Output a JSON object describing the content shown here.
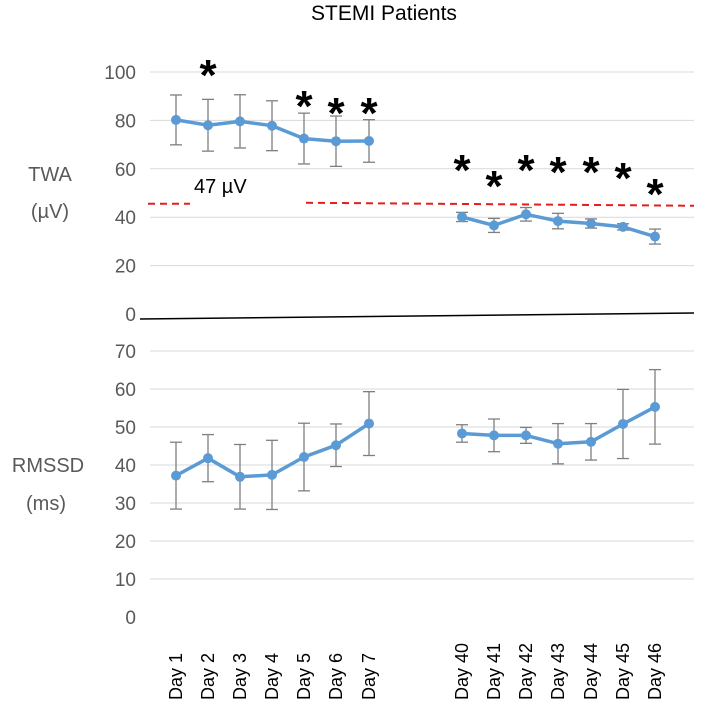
{
  "chart_data": {
    "type": "line",
    "title": "STEMI Patients",
    "categories": [
      "Day 1",
      "Day 2",
      "Day 3",
      "Day 4",
      "Day 5",
      "Day 6",
      "Day 7",
      "Day 40",
      "Day 41",
      "Day 42",
      "Day 43",
      "Day 44",
      "Day 45",
      "Day 46"
    ],
    "line_color": "#5b9bd5",
    "threshold_color": "#e02020",
    "panels": [
      {
        "id": "twa",
        "ylabel": [
          "TWA",
          "(µV)"
        ],
        "ylim": [
          0,
          100
        ],
        "yticks": [
          "0",
          "20",
          "40",
          "60",
          "80",
          "100"
        ],
        "threshold": 47,
        "threshold_label": "47 µV",
        "series": [
          {
            "name": "TWA",
            "values": [
              80.2,
              78.0,
              79.6,
              77.8,
              72.5,
              71.4,
              71.5,
              40.1,
              36.6,
              41.2,
              38.4,
              37.4,
              36.0,
              32.0
            ]
          }
        ],
        "errors": [
          10.3,
          10.7,
          11.0,
          10.3,
          10.5,
          10.4,
          8.8,
          1.9,
          2.9,
          2.8,
          3.2,
          1.9,
          1.3,
          3.1
        ],
        "significant_label": "*",
        "significant": [
          false,
          true,
          false,
          false,
          true,
          true,
          true,
          true,
          true,
          true,
          true,
          true,
          true,
          true
        ]
      },
      {
        "id": "rmssd",
        "ylabel": [
          "RMSSD",
          "(ms)"
        ],
        "ylim": [
          0,
          70
        ],
        "yticks": [
          "0",
          "10",
          "20",
          "30",
          "40",
          "50",
          "60",
          "70"
        ],
        "series": [
          {
            "name": "RMSSD",
            "values": [
              37.2,
              41.8,
              36.9,
              37.4,
              42.1,
              45.2,
              50.9,
              48.3,
              47.8,
              47.8,
              45.6,
              46.1,
              50.8,
              55.3
            ]
          }
        ],
        "errors": [
          8.8,
          6.2,
          8.5,
          9.1,
          8.9,
          5.6,
          8.4,
          2.3,
          4.3,
          2.1,
          5.3,
          4.8,
          9.1,
          9.8
        ]
      }
    ]
  }
}
